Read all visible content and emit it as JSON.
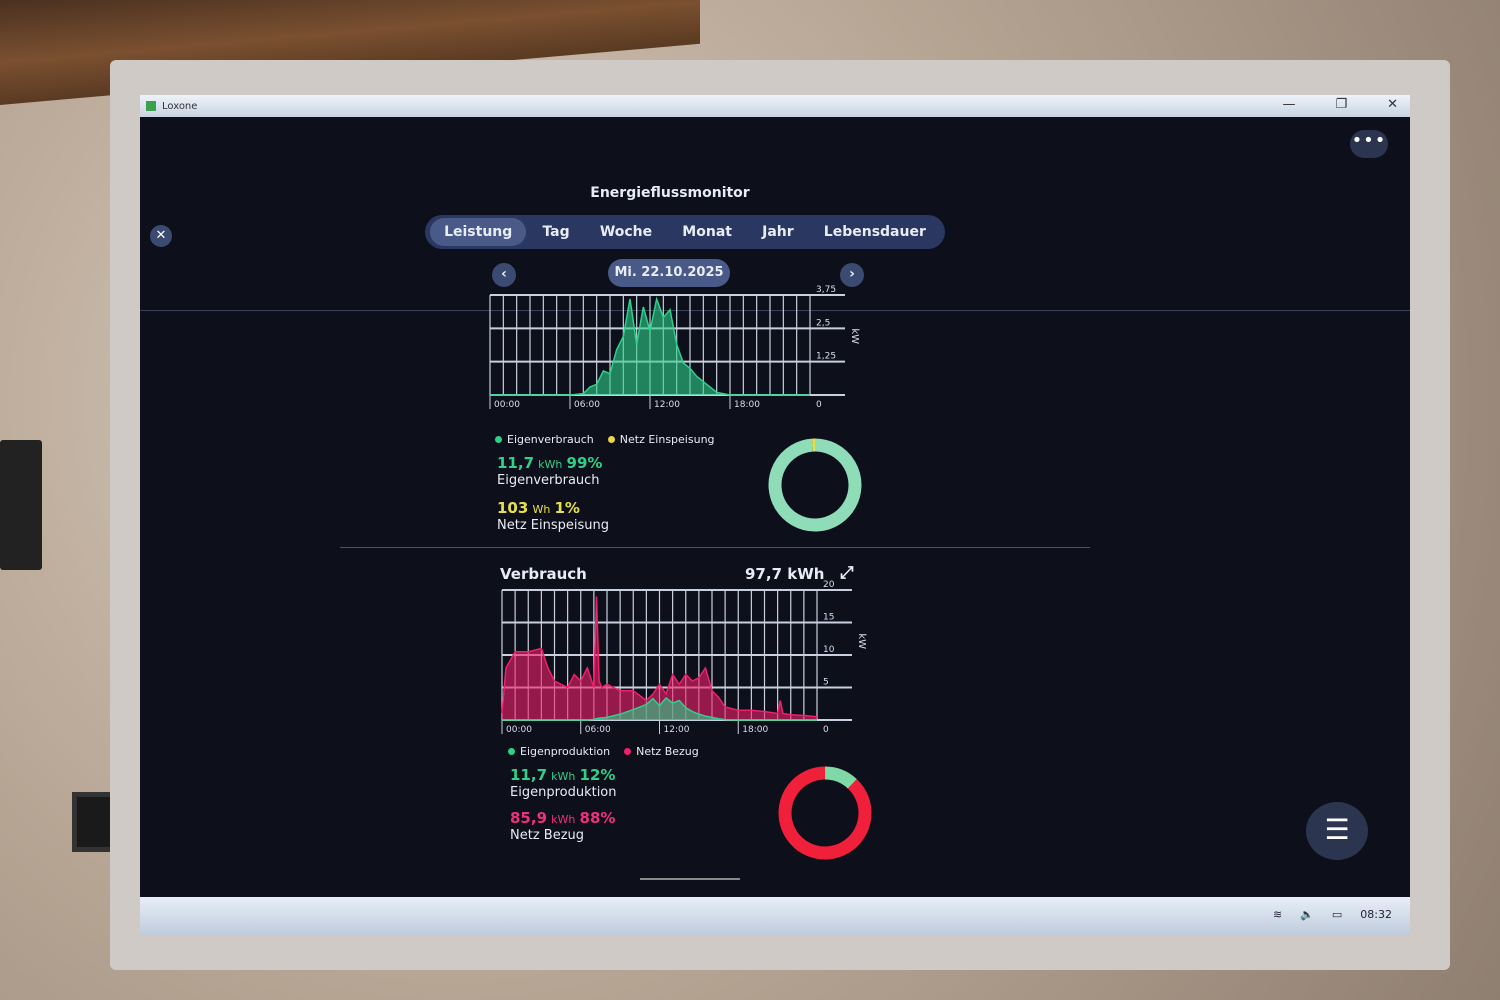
{
  "window": {
    "app_name": "Loxone",
    "minimize": "—",
    "restore": "❐",
    "close": "✕"
  },
  "header": {
    "title": "Energieflussmonitor",
    "close_icon": "✕",
    "more_icon": "•••"
  },
  "tabs": [
    {
      "label": "Leistung",
      "active": true
    },
    {
      "label": "Tag"
    },
    {
      "label": "Woche"
    },
    {
      "label": "Monat"
    },
    {
      "label": "Jahr"
    },
    {
      "label": "Lebensdauer"
    }
  ],
  "date": {
    "label": "Mi. 22.10.2025",
    "prev_icon": "‹",
    "next_icon": "›"
  },
  "production": {
    "legend": [
      {
        "label": "Eigenverbrauch",
        "color": "#2ed08a"
      },
      {
        "label": "Netz Einspeisung",
        "color": "#e8d84a"
      }
    ],
    "stats": [
      {
        "value": "11,7",
        "unit": "kWh",
        "percent": "99%",
        "label": "Eigenverbrauch",
        "color": "#2ed08a"
      },
      {
        "value": "103",
        "unit": "Wh",
        "percent": "1%",
        "label": "Netz Einspeisung",
        "color": "#e8e04a"
      }
    ]
  },
  "consumption": {
    "title": "Verbrauch",
    "total": "97,7 kWh",
    "expand_icon": "⤢",
    "legend": [
      {
        "label": "Eigenproduktion",
        "color": "#2ed08a"
      },
      {
        "label": "Netz Bezug",
        "color": "#f0206a"
      }
    ],
    "stats": [
      {
        "value": "11,7",
        "unit": "kWh",
        "percent": "12%",
        "label": "Eigenproduktion",
        "color": "#2ed08a"
      },
      {
        "value": "85,9",
        "unit": "kWh",
        "percent": "88%",
        "label": "Netz Bezug",
        "color": "#f0307a"
      }
    ]
  },
  "chart_data": [
    {
      "type": "area",
      "xlabel": "",
      "ylabel": "kW",
      "x_ticks": [
        "00:00",
        "06:00",
        "12:00",
        "18:00"
      ],
      "y_ticks": [
        "0",
        "1,25",
        "2,5",
        "3,75"
      ],
      "ylim": [
        0,
        3.75
      ],
      "x": [
        0,
        1,
        2,
        3,
        4,
        5,
        6,
        7,
        7.5,
        8,
        8.5,
        9,
        9.5,
        10,
        10.5,
        11,
        11.5,
        12,
        12.5,
        13,
        13.5,
        14,
        14.5,
        15,
        15.5,
        16,
        16.5,
        17,
        18,
        19,
        20,
        21,
        22,
        23,
        24
      ],
      "series": [
        {
          "name": "Eigenverbrauch",
          "color": "#2ed08a",
          "values": [
            0,
            0,
            0,
            0,
            0,
            0,
            0,
            0.05,
            0.3,
            0.4,
            0.9,
            0.8,
            1.7,
            2.2,
            3.6,
            1.9,
            3.3,
            2.4,
            3.6,
            2.9,
            3.2,
            1.9,
            1.2,
            1.0,
            0.7,
            0.5,
            0.3,
            0.1,
            0,
            0,
            0,
            0,
            0,
            0,
            0
          ]
        }
      ]
    },
    {
      "type": "area",
      "xlabel": "",
      "ylabel": "kW",
      "x_ticks": [
        "00:00",
        "06:00",
        "12:00",
        "18:00"
      ],
      "y_ticks": [
        "0",
        "5",
        "10",
        "15",
        "20"
      ],
      "ylim": [
        0,
        20
      ],
      "x": [
        0,
        0.3,
        1,
        2,
        3,
        3.5,
        4,
        5,
        5.5,
        6,
        6.5,
        7,
        7.2,
        7.4,
        7.6,
        8,
        9,
        10,
        11,
        11.5,
        12,
        12.5,
        13,
        13.5,
        14,
        14.5,
        15,
        15.5,
        16,
        16.5,
        17,
        18,
        19,
        20,
        21,
        21.2,
        21.4,
        22,
        23,
        24
      ],
      "series": [
        {
          "name": "Netz Bezug",
          "color": "#f0206a",
          "values": [
            1,
            8,
            10.5,
            10.5,
            11,
            8,
            6,
            5,
            7,
            6,
            8,
            5,
            19,
            6,
            5,
            5.5,
            4.5,
            4.5,
            3,
            4,
            5.5,
            4,
            7,
            5.5,
            7,
            6,
            6.5,
            8,
            4.5,
            3.5,
            2,
            1.5,
            1.5,
            1.3,
            1,
            3,
            1,
            0.8,
            0.7,
            0.5
          ]
        },
        {
          "name": "Eigenproduktion",
          "color": "#2ed08a",
          "values": [
            0,
            0,
            0,
            0,
            0,
            0,
            0,
            0,
            0,
            0,
            0,
            0.1,
            0.2,
            0.3,
            0.3,
            0.4,
            0.9,
            1.6,
            2.4,
            3.3,
            2.2,
            3.4,
            2.6,
            3.0,
            1.9,
            1.3,
            0.9,
            0.6,
            0.4,
            0.2,
            0.05,
            0,
            0,
            0,
            0,
            0,
            0,
            0,
            0,
            0
          ]
        }
      ]
    },
    {
      "type": "pie",
      "donut": true,
      "slices": [
        {
          "label": "Eigenverbrauch",
          "value": 99,
          "color": "#8fdcb8"
        },
        {
          "label": "Netz Einspeisung",
          "value": 1,
          "color": "#e8e04a"
        }
      ]
    },
    {
      "type": "pie",
      "donut": true,
      "slices": [
        {
          "label": "Eigenproduktion",
          "value": 12,
          "color": "#7ed9a6"
        },
        {
          "label": "Netz Bezug",
          "value": 88,
          "color": "#f0203a"
        }
      ]
    }
  ],
  "taskbar": {
    "time": "08:32",
    "wifi_icon": "≋",
    "volume_icon": "🔈",
    "battery_icon": "▭"
  },
  "menu_icon": "☰"
}
